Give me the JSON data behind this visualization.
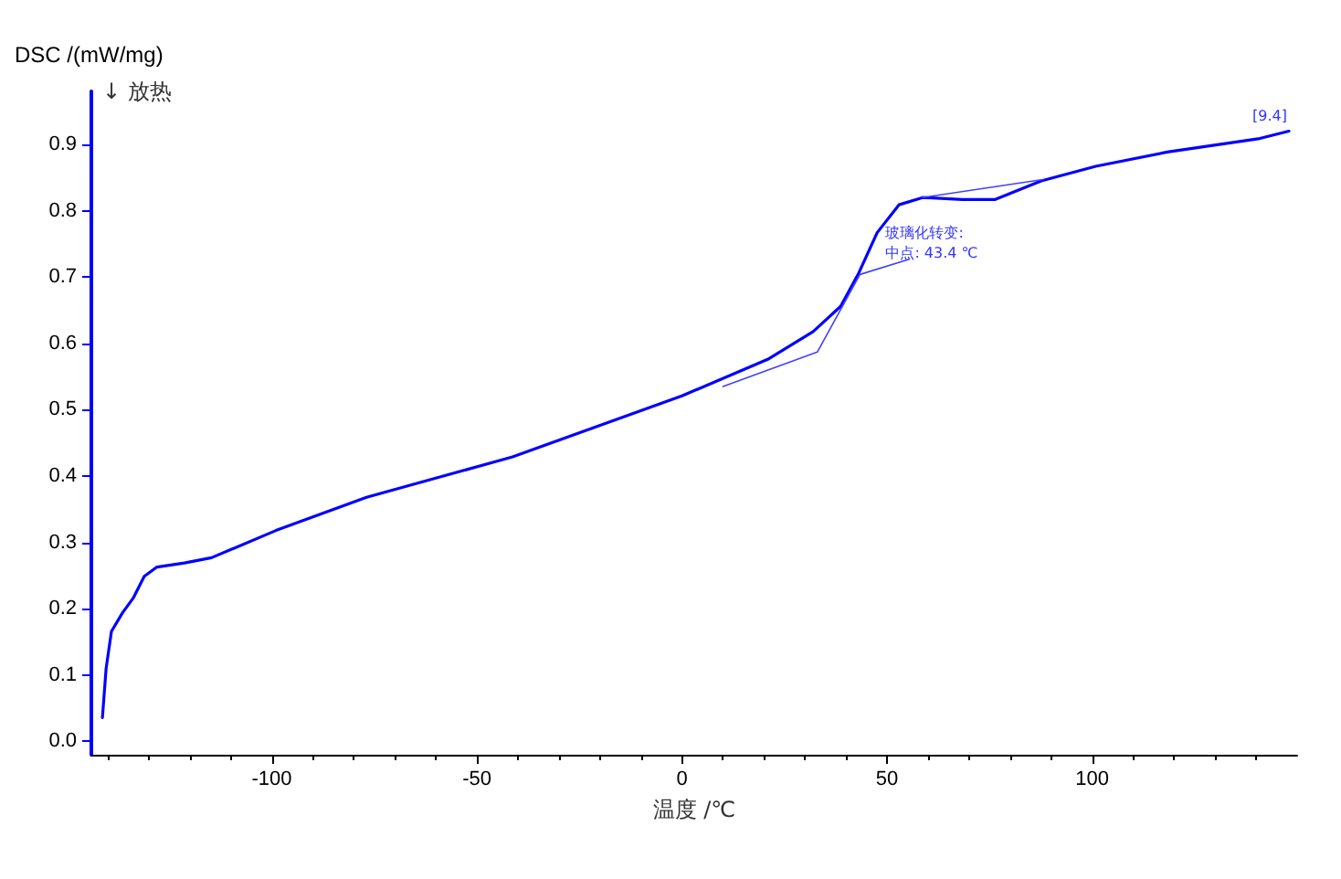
{
  "chart_data": {
    "type": "line",
    "xlabel": "温度 /℃",
    "ylabel": "DSC /(mW/mg)",
    "xlim": [
      -144,
      150
    ],
    "ylim": [
      -0.02,
      0.98
    ],
    "xticks": [
      -100,
      -50,
      0,
      50,
      100
    ],
    "yticks": [
      {
        "value": 0,
        "label": "0.0"
      },
      0.1,
      0.2,
      0.3,
      0.4,
      0.5,
      0.6,
      0.7,
      0.8,
      0.9
    ],
    "grid": false,
    "marker": "none",
    "line_style": "solid",
    "series": [
      {
        "color": "#0000ff",
        "x": [
          -141.3,
          -140.4,
          -139.1,
          -136.4,
          -133.8,
          -131.1,
          -128,
          -121.3,
          -114.7,
          -99,
          -76.9,
          -41.3,
          0,
          20.9,
          32,
          38.7,
          43.1,
          47.6,
          52.9,
          58.7,
          68.4,
          76.4,
          87.6,
          100.9,
          118.7,
          140.9,
          148
        ],
        "values": [
          0.036,
          0.11,
          0.166,
          0.194,
          0.216,
          0.249,
          0.263,
          0.269,
          0.277,
          0.318,
          0.368,
          0.429,
          0.521,
          0.576,
          0.618,
          0.656,
          0.706,
          0.767,
          0.809,
          0.82,
          0.817,
          0.817,
          0.845,
          0.867,
          0.889,
          0.909,
          0.92
        ]
      },
      {
        "color": "#4040ff",
        "x": [
          10,
          33,
          43.4,
          55.4
        ],
        "values": [
          0.535,
          0.587,
          0.704,
          0.727
        ]
      },
      {
        "color": "#4040ff",
        "x": [
          58.7,
          88
        ],
        "values": [
          0.82,
          0.847
        ]
      }
    ],
    "annotations": [
      "↓ 放热",
      {
        "text": "玻璃化转变:\n中点: 43.4 ℃",
        "x": 43.4,
        "y": 0.704
      },
      {
        "text": "[9.4]",
        "x": 148,
        "y": 0.92
      }
    ]
  }
}
